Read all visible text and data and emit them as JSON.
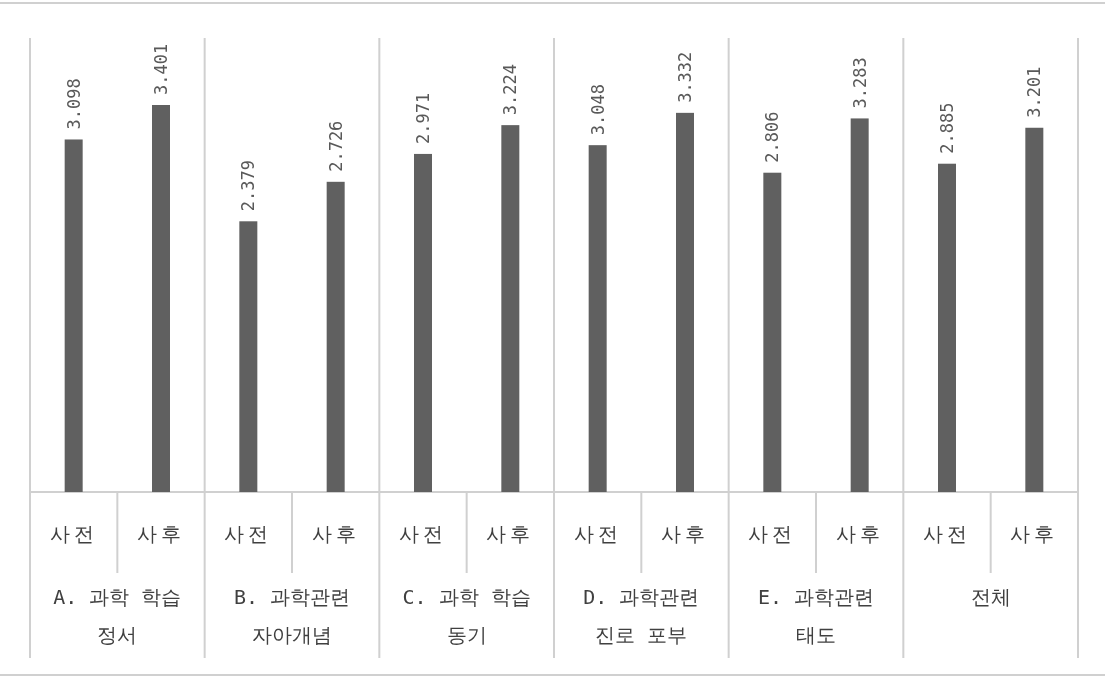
{
  "chart_data": {
    "type": "bar",
    "categories": [
      "사전",
      "사후",
      "사전",
      "사후",
      "사전",
      "사후",
      "사전",
      "사후",
      "사전",
      "사후",
      "사전",
      "사후"
    ],
    "values": [
      3.098,
      3.401,
      2.379,
      2.726,
      2.971,
      3.224,
      3.048,
      3.332,
      2.806,
      3.283,
      2.885,
      3.201
    ],
    "color": "#606060",
    "data_labels": true,
    "annotations": [
      "A. 과학 학습\n정서",
      "B. 과학관련\n자아개념",
      "C. 과학 학습\n동기",
      "D. 과학관련\n진로 포부",
      "E. 과학관련\n태도",
      "전체"
    ]
  }
}
